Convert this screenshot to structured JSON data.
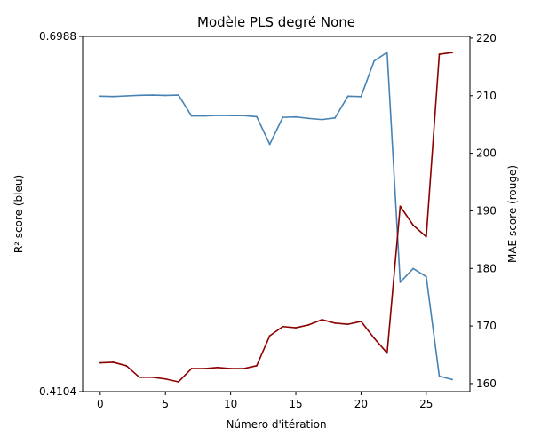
{
  "chart_data": {
    "type": "line",
    "title": "Modèle PLS degré None",
    "xlabel": "Número d'itération",
    "ylabel_left": "R² score (bleu)",
    "ylabel_right": "MAE score (rouge)",
    "x_ticks": [
      0,
      5,
      10,
      15,
      20,
      25
    ],
    "xlim": [
      -1.35,
      28.35
    ],
    "left_axis": {
      "ylim": [
        0.4104,
        0.6988
      ],
      "ticks": [
        "0.4104",
        "0.6988"
      ]
    },
    "right_axis": {
      "ylim": [
        158.6,
        220.3
      ],
      "ticks": [
        160,
        170,
        180,
        190,
        200,
        210,
        220
      ]
    },
    "grid": false,
    "series": [
      {
        "axis": "left",
        "color": "#4682b4",
        "x": [
          0,
          1,
          2,
          3,
          4,
          5,
          6,
          7,
          8,
          9,
          10,
          11,
          12,
          13,
          14,
          15,
          16,
          17,
          18,
          19,
          20,
          21,
          22,
          23,
          24,
          25,
          26,
          27
        ],
        "values": [
          0.6503,
          0.65,
          0.6505,
          0.651,
          0.6512,
          0.6509,
          0.6512,
          0.6342,
          0.6342,
          0.6347,
          0.6345,
          0.6345,
          0.6336,
          0.6112,
          0.6331,
          0.6334,
          0.6322,
          0.6313,
          0.6326,
          0.6503,
          0.6499,
          0.6788,
          0.6859,
          0.4992,
          0.5103,
          0.5037,
          0.4229,
          0.4202
        ]
      },
      {
        "axis": "right",
        "color": "#8b0000",
        "x": [
          0,
          1,
          2,
          3,
          4,
          5,
          6,
          7,
          8,
          9,
          10,
          11,
          12,
          13,
          14,
          15,
          16,
          17,
          18,
          19,
          20,
          21,
          22,
          23,
          24,
          25,
          26,
          27
        ],
        "values": [
          163.6,
          163.7,
          163.1,
          161.1,
          161.1,
          160.8,
          160.3,
          162.6,
          162.6,
          162.8,
          162.6,
          162.6,
          163.1,
          168.3,
          169.9,
          169.7,
          170.2,
          171.1,
          170.5,
          170.3,
          170.8,
          167.9,
          165.3,
          190.8,
          187.5,
          185.5,
          217.2,
          217.5
        ]
      }
    ]
  }
}
